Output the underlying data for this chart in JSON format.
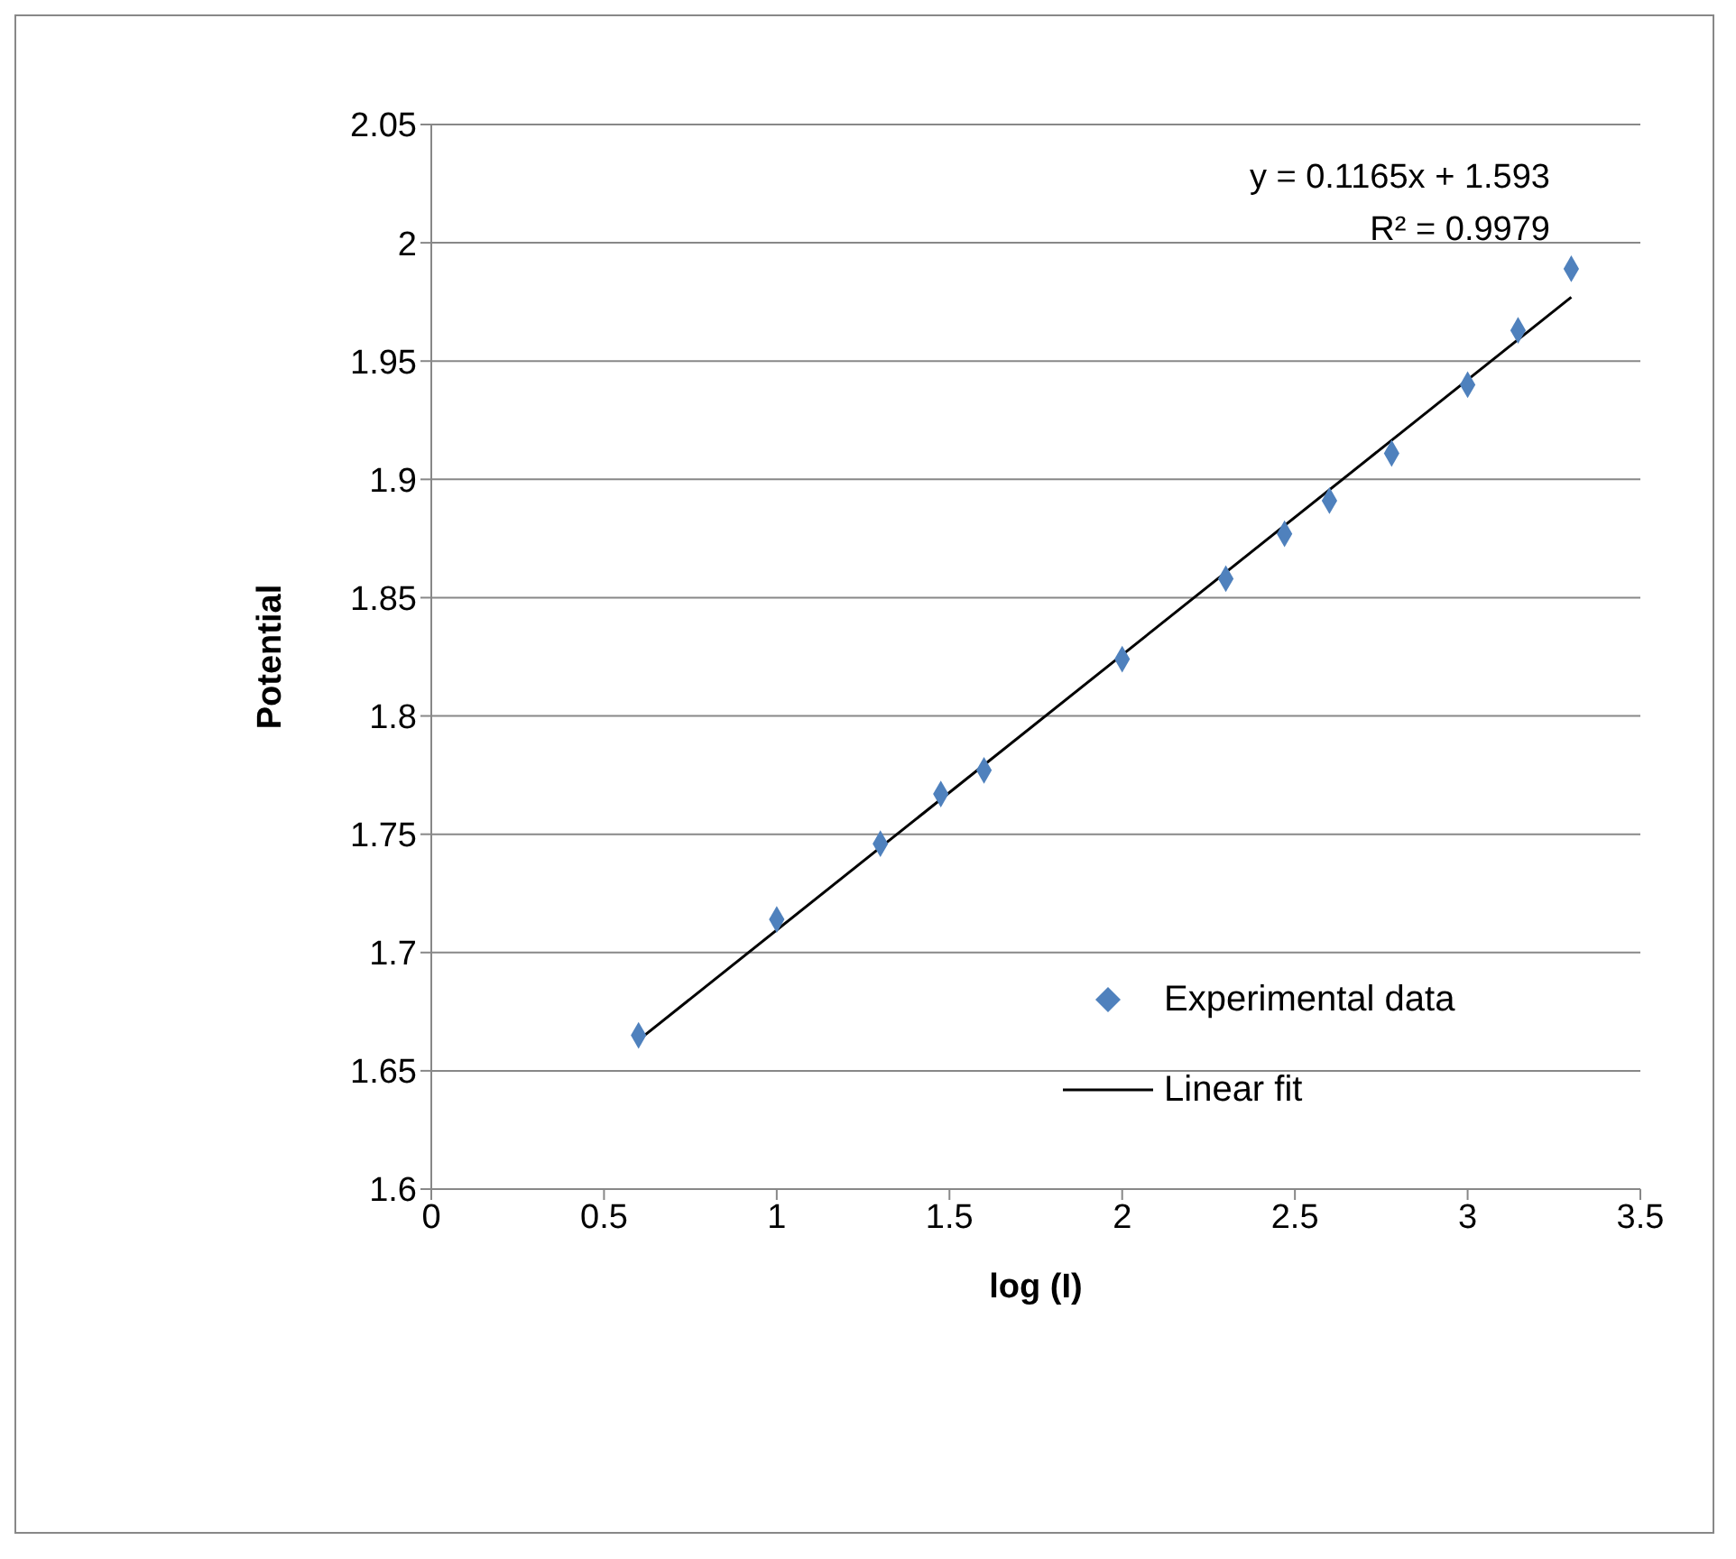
{
  "chart_data": {
    "type": "scatter",
    "xlabel": "log (I)",
    "ylabel": "Potential",
    "series": [
      {
        "name": "Experimental data",
        "color": "#4f81bd",
        "marker": "diamond",
        "x": [
          0.6,
          1.0,
          1.3,
          1.475,
          1.6,
          2.0,
          2.3,
          2.47,
          2.6,
          2.78,
          3.0,
          3.146,
          3.3
        ],
        "values": [
          1.665,
          1.714,
          1.746,
          1.767,
          1.777,
          1.824,
          1.858,
          1.877,
          1.891,
          1.911,
          1.94,
          1.963,
          1.989
        ]
      },
      {
        "name": "Linear fit",
        "type": "line",
        "color": "#000000",
        "marker": "none",
        "line_style": "solid",
        "x": [
          0.6,
          3.3
        ],
        "values": [
          1.663,
          1.977
        ]
      }
    ],
    "xlim": [
      0,
      3.5
    ],
    "xticks": [
      0,
      0.5,
      1,
      1.5,
      2,
      2.5,
      3,
      3.5
    ],
    "ylim": [
      1.6,
      2.05
    ],
    "yticks": [
      1.6,
      1.65,
      1.7,
      1.75,
      1.8,
      1.85,
      1.9,
      1.95,
      2,
      2.05
    ],
    "grid": "y",
    "legend": "bottom right",
    "annotations": [
      "y = 0.1165x + 1.593",
      "R² = 0.9979"
    ]
  }
}
